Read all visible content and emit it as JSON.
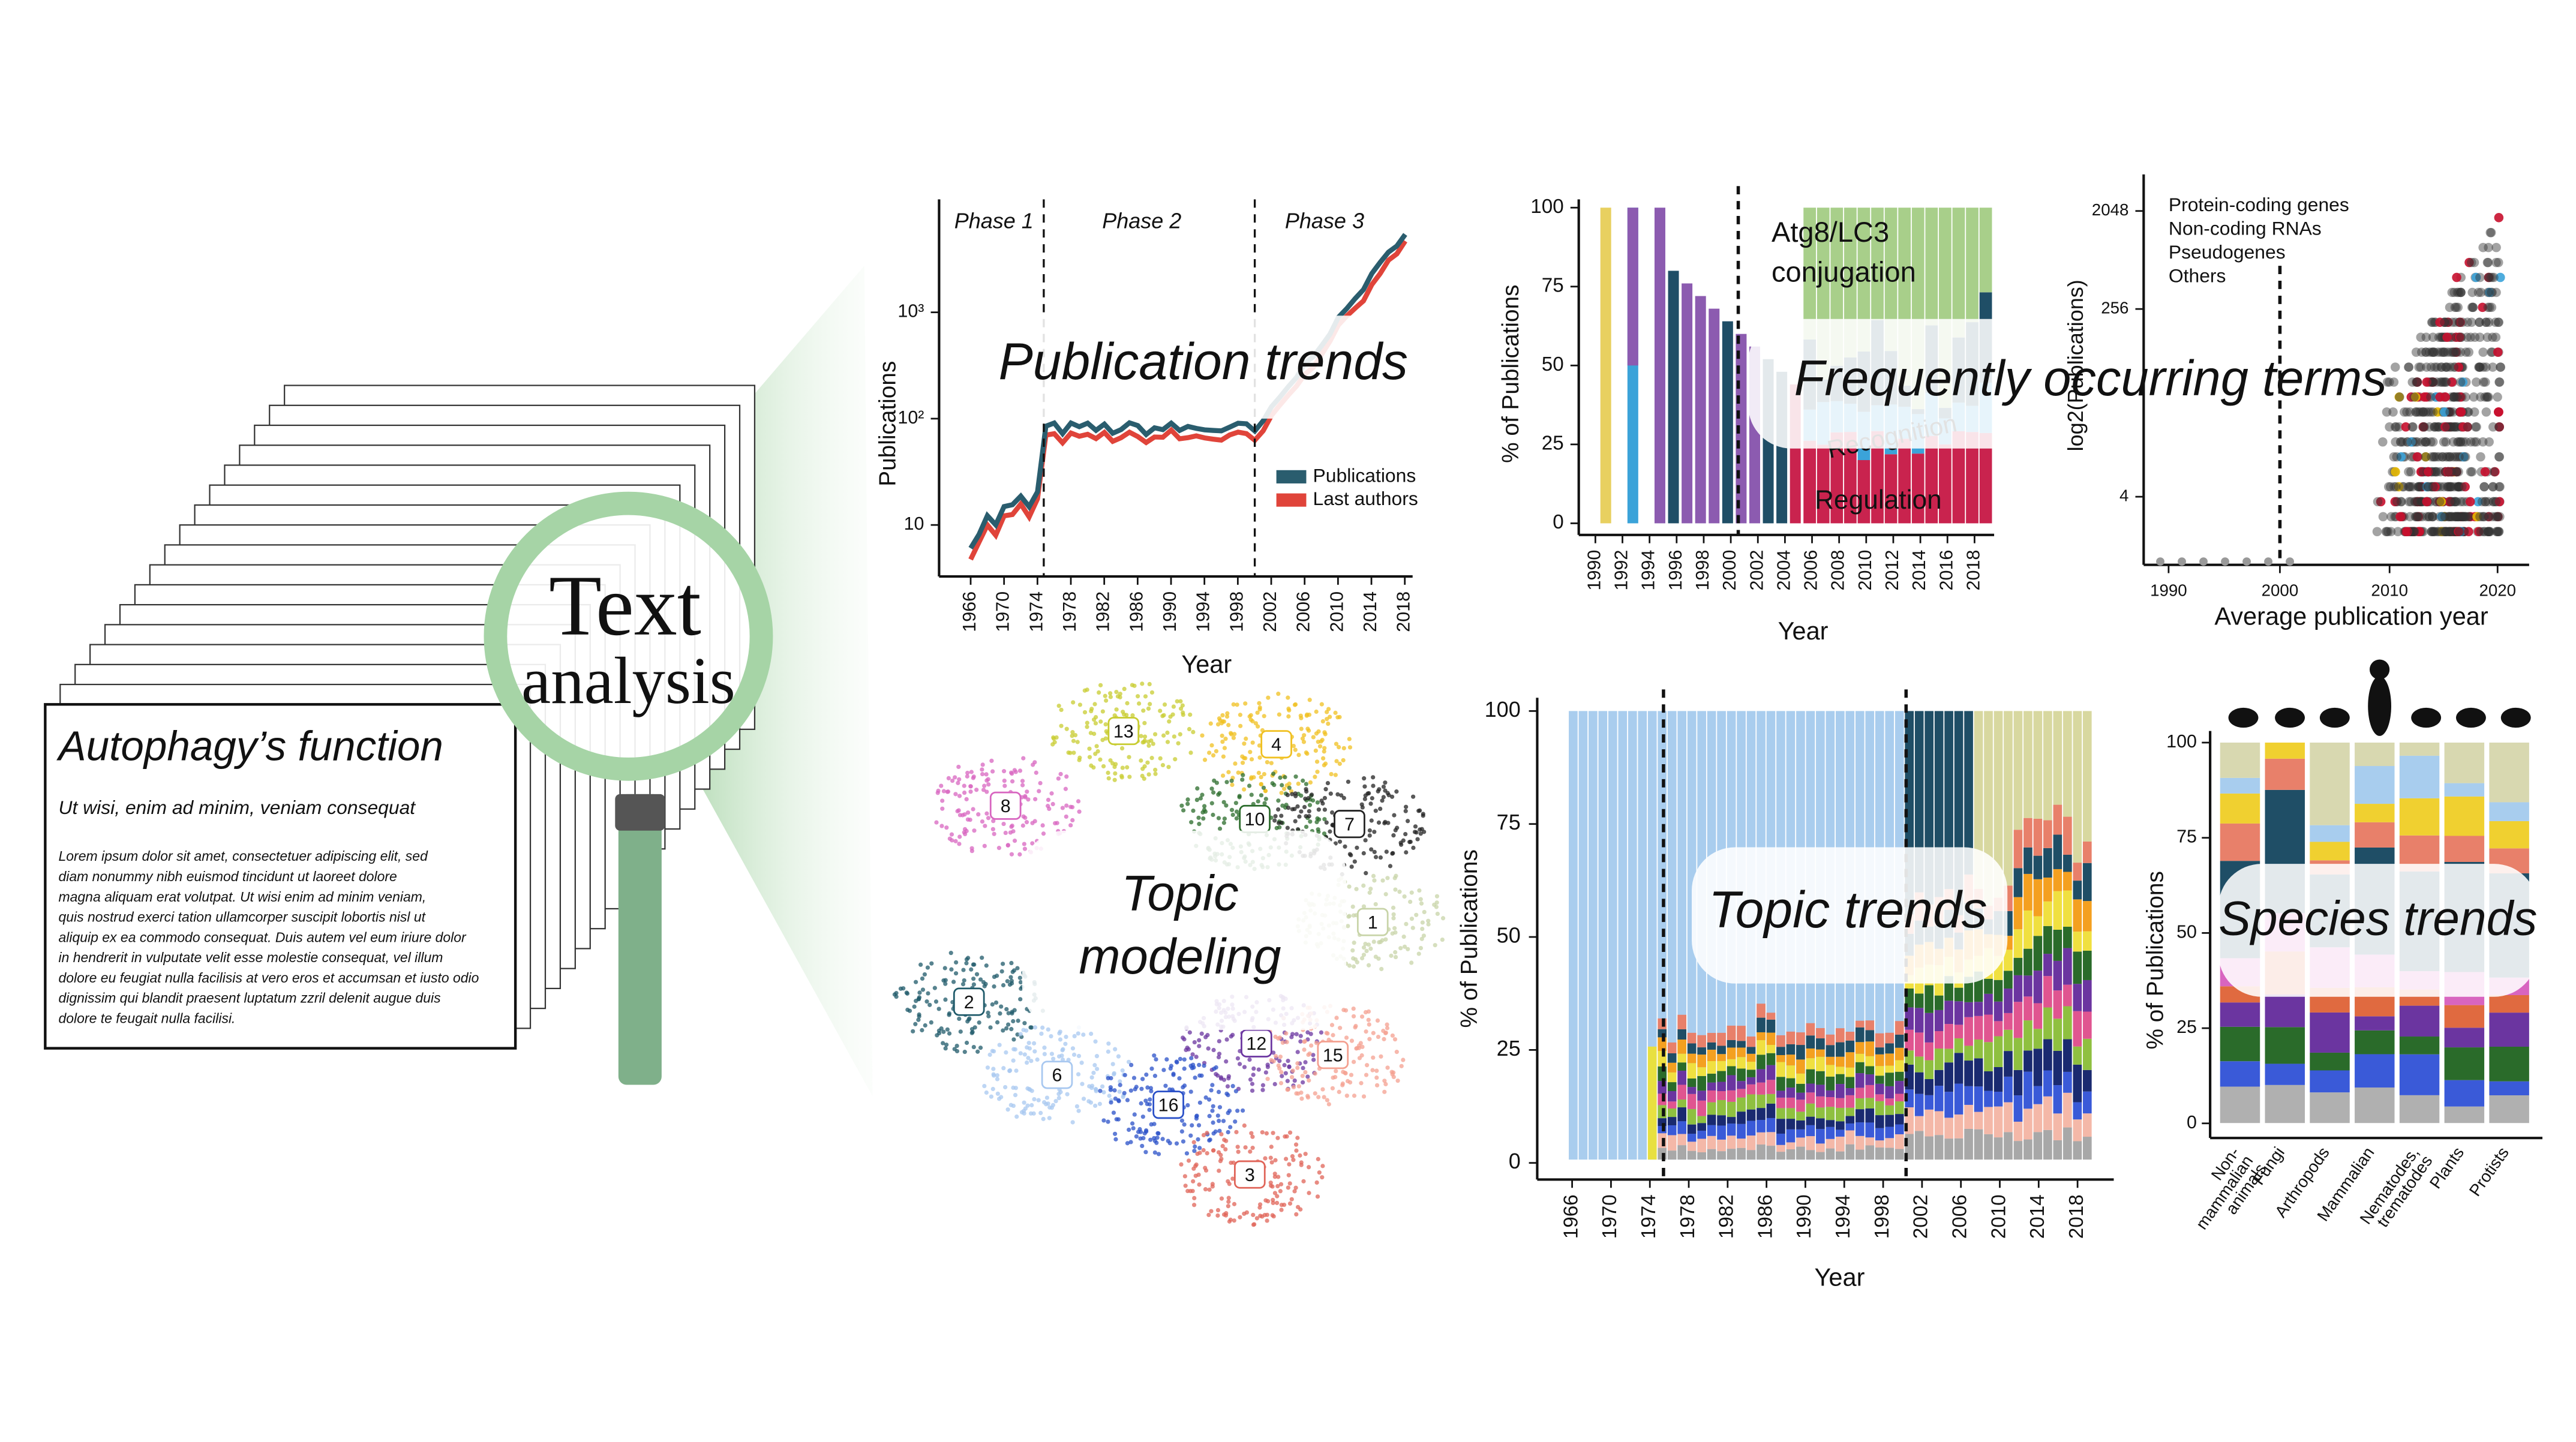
{
  "document": {
    "title": "Autophagy’s function",
    "subtitle": "Ut wisi, enim ad minim, veniam consequat",
    "body": [
      "Lorem ipsum dolor sit amet, consectetuer adipiscing elit, sed",
      "diam nonummy nibh euismod tincidunt ut laoreet dolore",
      "magna aliquam erat volutpat. Ut wisi enim ad minim veniam,",
      "quis nostrud exerci tation ullamcorper suscipit lobortis nisl ut",
      "aliquip ex ea commodo consequat. Duis autem vel eum iriure dolor",
      "in hendrerit in vulputate velit esse molestie consequat, vel illum",
      "dolore eu feugiat nulla facilisis at vero eros et accumsan et iusto odio",
      "dignissim qui blandit praesent luptatum zzril delenit augue duis",
      "dolore te feugait nulla facilisi."
    ]
  },
  "magnifier": {
    "line1": "Text",
    "line2": "analysis"
  },
  "publication_trends": {
    "overlay": "Publication trends",
    "phases": [
      "Phase 1",
      "Phase 2",
      "Phase 3"
    ],
    "y_title": "Publications",
    "yticks": [
      "10³",
      "10²",
      "10"
    ],
    "x_title": "Year",
    "xticks": [
      1966,
      1970,
      1974,
      1978,
      1982,
      1986,
      1990,
      1994,
      1998,
      2002,
      2006,
      2010,
      2014,
      2018
    ],
    "legend": [
      "Publications",
      "Last authors"
    ]
  },
  "frequent_terms": {
    "overlay": "Frequently occurring terms",
    "y_title": "% of Publications",
    "yticks": [
      100,
      75,
      50,
      25,
      0
    ],
    "x_title": "Year",
    "xticks": [
      1990,
      1992,
      1994,
      1996,
      1998,
      2000,
      2002,
      2004,
      2006,
      2008,
      2010,
      2012,
      2014,
      2016,
      2018
    ],
    "annotations": [
      "Atg8/LC3",
      "conjugation",
      "Recognition",
      "Regulation"
    ]
  },
  "gene_scatter": {
    "legend": [
      "Protein-coding genes",
      "Non-coding RNAs",
      "Pseudogenes",
      "Others"
    ],
    "y_title": "log2(Publications)",
    "yticks": [
      2048,
      256,
      4
    ],
    "x_title": "Average publication year",
    "xticks": [
      1990,
      2000,
      2010,
      2020
    ]
  },
  "topic_modeling": {
    "overlay": [
      "Topic",
      "modeling"
    ],
    "clusters": [
      "13",
      "4",
      "8",
      "10",
      "7",
      "1",
      "2",
      "12",
      "15",
      "6",
      "16",
      "3"
    ]
  },
  "topic_trends": {
    "overlay": "Topic trends",
    "y_title": "% of Publications",
    "yticks": [
      100,
      75,
      50,
      25,
      0
    ],
    "x_title": "Year",
    "xticks": [
      1966,
      1970,
      1974,
      1978,
      1982,
      1986,
      1990,
      1994,
      1998,
      2002,
      2006,
      2010,
      2014,
      2018
    ]
  },
  "species_trends": {
    "overlay": "Species trends",
    "y_title": "% of Publications",
    "yticks": [
      100,
      75,
      50,
      25,
      0
    ],
    "categories": [
      [
        "Non-",
        "mammalian",
        "animals"
      ],
      [
        "Fungi"
      ],
      [
        "Arthropods"
      ],
      [
        "Mammalian"
      ],
      [
        "Nematodes,",
        "trematodes"
      ],
      [
        "Plants"
      ],
      [
        "Protists"
      ]
    ]
  }
}
